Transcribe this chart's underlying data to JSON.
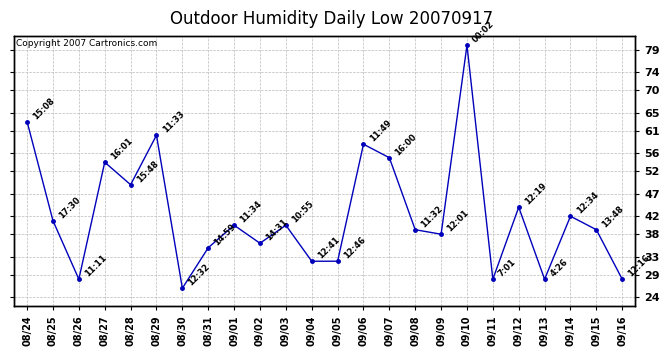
{
  "title": "Outdoor Humidity Daily Low 20070917",
  "copyright": "Copyright 2007 Cartronics.com",
  "x_labels": [
    "08/24",
    "08/25",
    "08/26",
    "08/27",
    "08/28",
    "08/29",
    "08/30",
    "08/31",
    "09/01",
    "09/02",
    "09/03",
    "09/04",
    "09/05",
    "09/06",
    "09/07",
    "09/08",
    "09/09",
    "09/10",
    "09/11",
    "09/12",
    "09/13",
    "09/14",
    "09/15",
    "09/16"
  ],
  "y_values": [
    63,
    41,
    28,
    54,
    49,
    60,
    26,
    35,
    40,
    36,
    40,
    32,
    32,
    58,
    55,
    39,
    38,
    80,
    28,
    44,
    28,
    42,
    39,
    28
  ],
  "point_labels": [
    "15:08",
    "17:30",
    "11:11",
    "16:01",
    "15:48",
    "11:33",
    "12:32",
    "14:59",
    "11:34",
    "14:31",
    "10:55",
    "12:41",
    "12:46",
    "11:49",
    "16:00",
    "11:32",
    "12:01",
    "00:02",
    "7:01",
    "12:19",
    "4:26",
    "12:34",
    "13:48",
    "12:16"
  ],
  "line_color": "#0000bb",
  "marker_color": "#0000bb",
  "bg_color": "#ffffff",
  "grid_color": "#bbbbbb",
  "ylim": [
    22,
    82
  ],
  "yticks": [
    24,
    29,
    33,
    38,
    42,
    47,
    52,
    56,
    61,
    65,
    70,
    74,
    79
  ],
  "label_fontsize": 7,
  "title_fontsize": 12
}
